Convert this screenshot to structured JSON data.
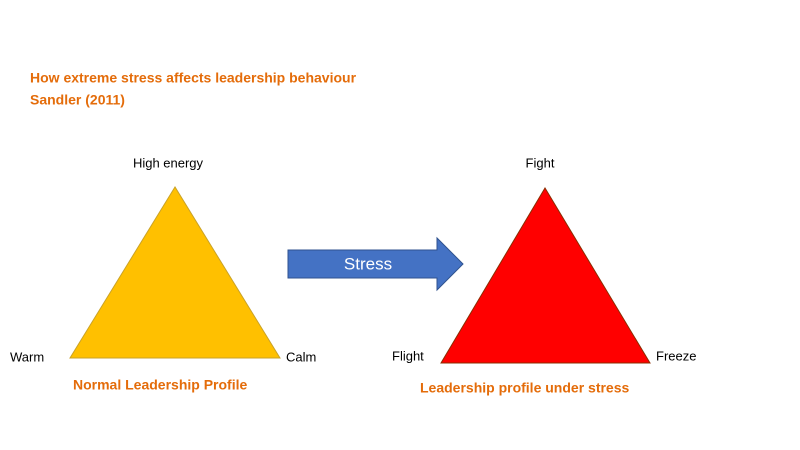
{
  "header": {
    "title": "How extreme stress affects leadership behaviour",
    "citation": "Sandler (2011)"
  },
  "normal_profile": {
    "caption": "Normal Leadership Profile",
    "top": "High energy",
    "left": "Warm",
    "right": "Calm"
  },
  "arrow": {
    "label": "Stress"
  },
  "stress_profile": {
    "caption": "Leadership profile under stress",
    "top": "Fight",
    "left": "Flight",
    "right": "Freeze"
  }
}
